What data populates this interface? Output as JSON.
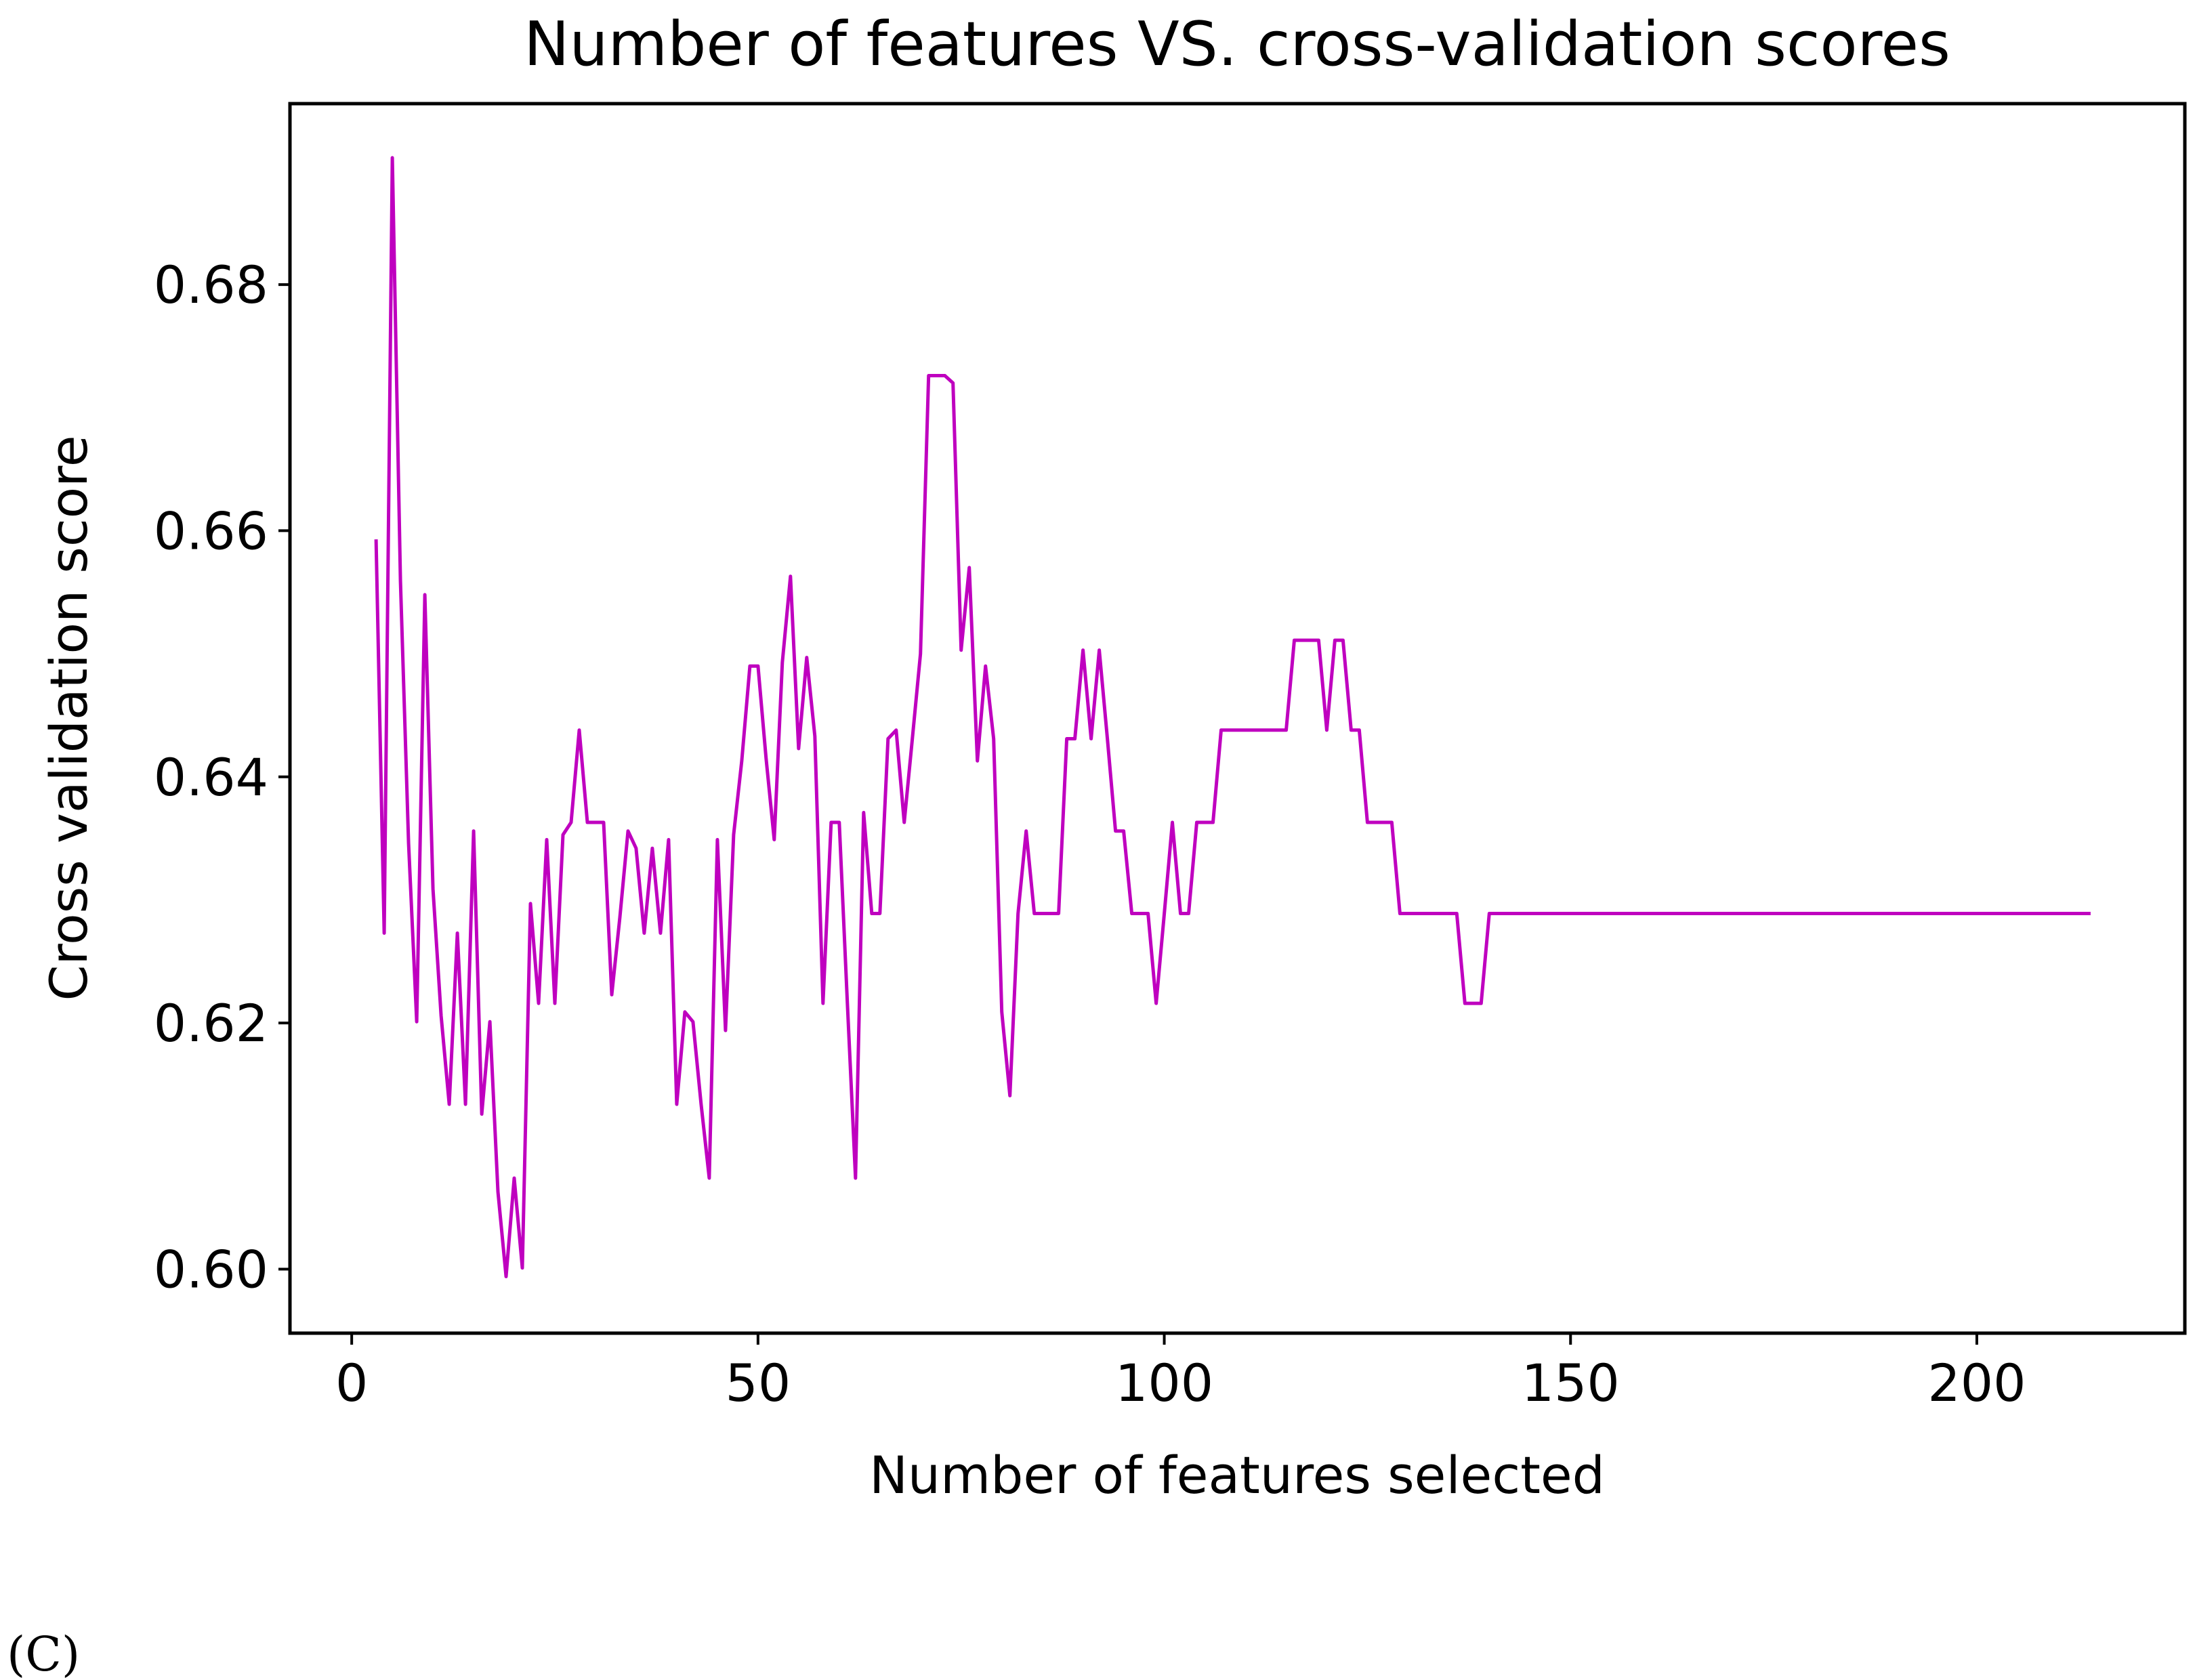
{
  "chart_data": {
    "type": "line",
    "title": "Number of features VS. cross-validation scores",
    "xlabel": "Number of features selected",
    "ylabel": "Cross validation score",
    "xlim": [
      -7.6,
      225.6
    ],
    "ylim": [
      0.5948,
      0.6947
    ],
    "xticks": [
      0,
      50,
      100,
      150,
      200
    ],
    "yticks": [
      0.6,
      0.62,
      0.64,
      0.66,
      0.68
    ],
    "grid": false,
    "line_color": "#bf00bf",
    "series": [
      {
        "x": [
          3,
          4,
          5,
          6,
          7,
          8,
          9,
          10,
          11,
          12,
          13,
          14,
          15,
          16,
          17,
          18,
          19,
          20,
          21,
          22,
          23,
          24,
          25,
          26,
          27,
          28,
          29,
          30,
          31,
          32,
          33,
          34,
          35,
          36,
          37,
          38,
          39,
          40,
          41,
          42,
          43,
          44,
          45,
          46,
          47,
          48,
          49,
          50,
          51,
          52,
          53,
          54,
          55,
          56,
          57,
          58,
          59,
          60,
          61,
          62,
          63,
          64,
          65,
          66,
          67,
          68,
          69,
          70,
          71,
          72,
          73,
          74,
          75,
          76,
          77,
          78,
          79,
          80,
          81,
          82,
          83,
          84,
          85,
          86,
          87,
          88,
          89,
          90,
          91,
          92,
          93,
          94,
          95,
          96,
          97,
          98,
          99,
          100,
          101,
          102,
          103,
          104,
          105,
          106,
          107,
          108,
          109,
          110,
          111,
          112,
          113,
          114,
          115,
          116,
          117,
          118,
          119,
          120,
          121,
          122,
          123,
          124,
          125,
          126,
          127,
          128,
          129,
          130,
          131,
          132,
          133,
          134,
          135,
          136,
          137,
          138,
          139,
          140,
          141,
          214
        ],
        "y": [
          0.6593,
          0.6273,
          0.6903,
          0.6559,
          0.6346,
          0.6201,
          0.6548,
          0.6309,
          0.6206,
          0.6134,
          0.6273,
          0.6134,
          0.6356,
          0.6126,
          0.6201,
          0.6063,
          0.5994,
          0.6074,
          0.6001,
          0.6297,
          0.6216,
          0.6349,
          0.6216,
          0.6353,
          0.6363,
          0.6438,
          0.6363,
          0.6363,
          0.6363,
          0.6223,
          0.6286,
          0.6356,
          0.6342,
          0.6273,
          0.6342,
          0.6273,
          0.6349,
          0.6134,
          0.6209,
          0.6201,
          0.6134,
          0.6074,
          0.6349,
          0.6194,
          0.6353,
          0.6413,
          0.649,
          0.649,
          0.6415,
          0.6349,
          0.6493,
          0.6563,
          0.6423,
          0.6497,
          0.6433,
          0.6216,
          0.6363,
          0.6363,
          0.6216,
          0.6074,
          0.6371,
          0.6289,
          0.6289,
          0.6431,
          0.6438,
          0.6363,
          0.6431,
          0.65,
          0.6726,
          0.6726,
          0.6726,
          0.672,
          0.6503,
          0.657,
          0.6413,
          0.649,
          0.6431,
          0.6209,
          0.6141,
          0.6289,
          0.6356,
          0.6289,
          0.6289,
          0.6289,
          0.6289,
          0.6431,
          0.6431,
          0.6503,
          0.6431,
          0.6503,
          0.6431,
          0.6356,
          0.6356,
          0.6289,
          0.6289,
          0.6289,
          0.6216,
          0.6289,
          0.6363,
          0.6289,
          0.6289,
          0.6363,
          0.6363,
          0.6363,
          0.6438,
          0.6438,
          0.6438,
          0.6438,
          0.6438,
          0.6438,
          0.6438,
          0.6438,
          0.6438,
          0.6511,
          0.6511,
          0.6511,
          0.6511,
          0.6438,
          0.6511,
          0.6511,
          0.6438,
          0.6438,
          0.6363,
          0.6363,
          0.6363,
          0.6363,
          0.6289,
          0.6289,
          0.6289,
          0.6289,
          0.6289,
          0.6289,
          0.6289,
          0.6289,
          0.6216,
          0.6216,
          0.6216,
          0.6289,
          0.6289,
          0.6289
        ]
      }
    ]
  },
  "panel_label": "(C)"
}
